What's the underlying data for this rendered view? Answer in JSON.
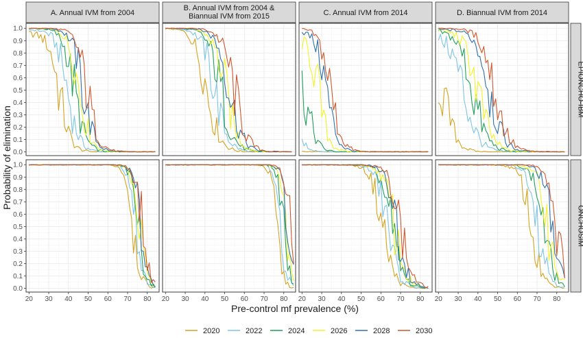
{
  "chart_data": {
    "type": "line",
    "xlabel": "Pre-control mf prevalence (%)",
    "ylabel": "Probability of elimination",
    "xlim": [
      18.5,
      86
    ],
    "ylim": [
      -0.03,
      1.04
    ],
    "x_ticks": [
      20,
      30,
      40,
      50,
      60,
      70,
      80
    ],
    "y_ticks": [
      0.0,
      0.1,
      0.2,
      0.3,
      0.4,
      0.5,
      0.6,
      0.7,
      0.8,
      0.9,
      1.0
    ],
    "x_tick_labels": [
      "20",
      "30",
      "40",
      "50",
      "60",
      "70",
      "80"
    ],
    "y_tick_labels": [
      "0.0",
      "0.1",
      "0.2",
      "0.3",
      "0.4",
      "0.5",
      "0.6",
      "0.7",
      "0.8",
      "0.9",
      "1.0"
    ],
    "columns": [
      {
        "id": "A",
        "title": "A. Annual IVM from 2004"
      },
      {
        "id": "B",
        "title": "B. Annual IVM from 2004 & Biannual IVM from 2015",
        "title_lines": [
          "B. Annual IVM from 2004 &",
          "Biannual IVM from 2015"
        ]
      },
      {
        "id": "C",
        "title": "C. Annual IVM from 2014"
      },
      {
        "id": "D",
        "title": "D. Biannual IVM from 2014"
      }
    ],
    "rows": [
      {
        "id": "EPIONCHO",
        "title": "EPIONCHO-IBM"
      },
      {
        "id": "ONCHOSIM",
        "title": "ONCHOSIM"
      }
    ],
    "legend": {
      "position": "bottom"
    },
    "series": [
      {
        "name": "2020",
        "color": "#d6a21e"
      },
      {
        "name": "2022",
        "color": "#7cc4e6"
      },
      {
        "name": "2024",
        "color": "#1f9e5a"
      },
      {
        "name": "2026",
        "color": "#f2f22a"
      },
      {
        "name": "2028",
        "color": "#2c6fad"
      },
      {
        "name": "2030",
        "color": "#d0552a"
      }
    ],
    "panels": [
      {
        "col": "A",
        "row": "EPIONCHO",
        "x_start": 20,
        "x_end": 84,
        "curves": [
          {
            "series": "2020",
            "mid": 35.5,
            "scale": 2.8,
            "y_start": 0.96
          },
          {
            "series": "2022",
            "mid": 39.5,
            "scale": 3.0,
            "y_start": 0.99
          },
          {
            "series": "2024",
            "mid": 43.0,
            "scale": 3.0,
            "y_start": 1.0
          },
          {
            "series": "2026",
            "mid": 45.5,
            "scale": 3.0,
            "y_start": 1.0
          },
          {
            "series": "2028",
            "mid": 47.5,
            "scale": 3.0,
            "y_start": 1.0
          },
          {
            "series": "2030",
            "mid": 49.5,
            "scale": 3.0,
            "y_start": 1.0
          }
        ]
      },
      {
        "col": "B",
        "row": "EPIONCHO",
        "x_start": 20,
        "x_end": 84,
        "curves": [
          {
            "series": "2020",
            "mid": 41.0,
            "scale": 3.4,
            "y_start": 1.0
          },
          {
            "series": "2022",
            "mid": 45.0,
            "scale": 3.4,
            "y_start": 1.0
          },
          {
            "series": "2024",
            "mid": 48.0,
            "scale": 3.4,
            "y_start": 1.0
          },
          {
            "series": "2026",
            "mid": 50.5,
            "scale": 3.4,
            "y_start": 1.0
          },
          {
            "series": "2028",
            "mid": 52.5,
            "scale": 3.4,
            "y_start": 1.0
          },
          {
            "series": "2030",
            "mid": 55.0,
            "scale": 3.4,
            "y_start": 1.0
          }
        ]
      },
      {
        "col": "C",
        "row": "EPIONCHO",
        "x_start": 20,
        "x_end": 84,
        "curves": [
          {
            "series": "2020",
            "mid": 15.5,
            "scale": 2.5,
            "y_start": 0.04
          },
          {
            "series": "2022",
            "mid": 17.0,
            "scale": 3.0,
            "y_start": 0.36
          },
          {
            "series": "2024",
            "mid": 23.0,
            "scale": 2.6,
            "y_start": 0.68
          },
          {
            "series": "2026",
            "mid": 28.5,
            "scale": 2.7,
            "y_start": 0.92
          },
          {
            "series": "2028",
            "mid": 32.5,
            "scale": 2.8,
            "y_start": 0.98
          },
          {
            "series": "2030",
            "mid": 34.5,
            "scale": 2.9,
            "y_start": 1.0
          }
        ]
      },
      {
        "col": "D",
        "row": "EPIONCHO",
        "x_start": 20,
        "x_end": 84,
        "curves": [
          {
            "series": "2020",
            "mid": 24.0,
            "scale": 3.2,
            "y_start": 0.73
          },
          {
            "series": "2022",
            "mid": 33.0,
            "scale": 3.8,
            "y_start": 0.95
          },
          {
            "series": "2024",
            "mid": 37.5,
            "scale": 3.8,
            "y_start": 0.98
          },
          {
            "series": "2026",
            "mid": 40.0,
            "scale": 3.8,
            "y_start": 0.99
          },
          {
            "series": "2028",
            "mid": 46.0,
            "scale": 3.6,
            "y_start": 0.99
          },
          {
            "series": "2030",
            "mid": 48.5,
            "scale": 3.6,
            "y_start": 1.0
          }
        ]
      },
      {
        "col": "A",
        "row": "ONCHOSIM",
        "x_start": 20,
        "x_end": 84,
        "curves": [
          {
            "series": "2020",
            "mid": 73.0,
            "scale": 2.0,
            "y_start": 1.0
          },
          {
            "series": "2022",
            "mid": 74.5,
            "scale": 2.0,
            "y_start": 1.0
          },
          {
            "series": "2024",
            "mid": 75.5,
            "scale": 2.0,
            "y_start": 1.0
          },
          {
            "series": "2026",
            "mid": 76.0,
            "scale": 2.0,
            "y_start": 1.0
          },
          {
            "series": "2028",
            "mid": 76.8,
            "scale": 2.0,
            "y_start": 1.0
          },
          {
            "series": "2030",
            "mid": 77.5,
            "scale": 2.0,
            "y_start": 1.0
          }
        ]
      },
      {
        "col": "B",
        "row": "ONCHOSIM",
        "x_start": 20,
        "x_end": 85,
        "curves": [
          {
            "series": "2020",
            "mid": 76.5,
            "scale": 1.6,
            "y_start": 1.0
          },
          {
            "series": "2022",
            "mid": 78.5,
            "scale": 1.6,
            "y_start": 1.0
          },
          {
            "series": "2024",
            "mid": 80.0,
            "scale": 1.6,
            "y_start": 1.0
          },
          {
            "series": "2026",
            "mid": 81.0,
            "scale": 1.6,
            "y_start": 1.0
          },
          {
            "series": "2028",
            "mid": 82.0,
            "scale": 1.6,
            "y_start": 1.0
          },
          {
            "series": "2030",
            "mid": 83.0,
            "scale": 1.6,
            "y_start": 1.0
          }
        ]
      },
      {
        "col": "C",
        "row": "ONCHOSIM",
        "x_start": 20,
        "x_end": 84,
        "curves": [
          {
            "series": "2020",
            "mid": 61.0,
            "scale": 3.0,
            "y_start": 1.0
          },
          {
            "series": "2022",
            "mid": 63.5,
            "scale": 3.0,
            "y_start": 1.0
          },
          {
            "series": "2024",
            "mid": 65.5,
            "scale": 3.0,
            "y_start": 1.0
          },
          {
            "series": "2026",
            "mid": 67.0,
            "scale": 3.0,
            "y_start": 1.0
          },
          {
            "series": "2028",
            "mid": 68.5,
            "scale": 3.0,
            "y_start": 1.0
          },
          {
            "series": "2030",
            "mid": 70.0,
            "scale": 3.0,
            "y_start": 1.0
          }
        ]
      },
      {
        "col": "D",
        "row": "ONCHOSIM",
        "x_start": 20,
        "x_end": 84,
        "curves": [
          {
            "series": "2020",
            "mid": 67.0,
            "scale": 2.8,
            "y_start": 1.0
          },
          {
            "series": "2022",
            "mid": 71.0,
            "scale": 2.8,
            "y_start": 1.0
          },
          {
            "series": "2024",
            "mid": 73.5,
            "scale": 2.8,
            "y_start": 1.0
          },
          {
            "series": "2026",
            "mid": 75.5,
            "scale": 2.8,
            "y_start": 1.0
          },
          {
            "series": "2028",
            "mid": 77.5,
            "scale": 2.6,
            "y_start": 1.0
          },
          {
            "series": "2030",
            "mid": 80.0,
            "scale": 2.4,
            "y_start": 1.0
          }
        ]
      }
    ]
  }
}
